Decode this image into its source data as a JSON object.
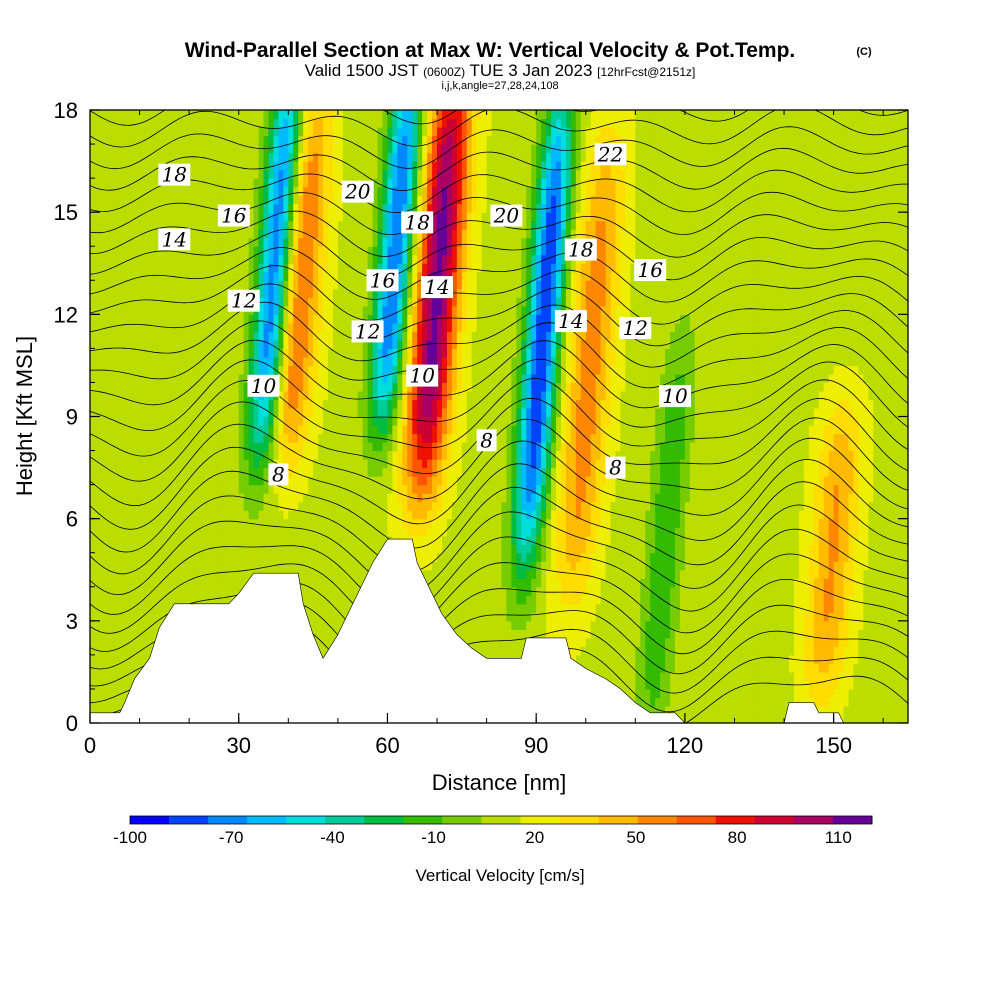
{
  "title": "Wind-Parallel Section at Max W: Vertical Velocity & Pot.Temp.",
  "copyright": "(C)",
  "valid_prefix": "Valid 1500 JST",
  "valid_utc": "(0600Z)",
  "valid_date": "TUE 3 Jan 2023",
  "forecast_info": "[12hrFcst@2151z]",
  "params": "i,j,k,angle=27,28,24,108",
  "chart_data": {
    "type": "heatmap",
    "title": "Wind-Parallel Section at Max W: Vertical Velocity & Pot.Temp.",
    "xlabel": "Distance [nm]",
    "ylabel": "Height [Kft MSL]",
    "xlim": [
      0,
      165
    ],
    "ylim": [
      0,
      18
    ],
    "xticks": [
      0,
      30,
      60,
      90,
      120,
      150
    ],
    "yticks": [
      0,
      3,
      6,
      9,
      12,
      15,
      18
    ],
    "colorbar": {
      "label": "Vertical Velocity [cm/s]",
      "tick_labels": [
        "-100",
        "-70",
        "-40",
        "-10",
        "20",
        "50",
        "80",
        "110"
      ],
      "range": [
        -100,
        120
      ],
      "colors": [
        "#0000ff",
        "#0044ff",
        "#0088ff",
        "#00bbff",
        "#00dddd",
        "#00cc99",
        "#00bb44",
        "#33bb00",
        "#77cc00",
        "#bbdd00",
        "#eeee00",
        "#ffdd00",
        "#ffbb00",
        "#ff8800",
        "#ff5500",
        "#ee1100",
        "#cc0033",
        "#aa0066",
        "#660099"
      ]
    },
    "velocity_features": [
      {
        "type": "updraft",
        "x": 68,
        "zmin": 8,
        "zmax": 18,
        "w": 100
      },
      {
        "type": "updraft",
        "x": 40,
        "zmin": 9,
        "zmax": 17,
        "w": 55
      },
      {
        "type": "updraft",
        "x": 100,
        "zmin": 5,
        "zmax": 16,
        "w": 45
      },
      {
        "type": "updraft",
        "x": 152,
        "zmin": 2,
        "zmax": 8,
        "w": 40
      },
      {
        "type": "downdraft",
        "x": 35,
        "zmin": 9,
        "zmax": 18,
        "w": -95
      },
      {
        "type": "downdraft",
        "x": 59,
        "zmin": 10,
        "zmax": 18,
        "w": -90
      },
      {
        "type": "downdraft",
        "x": 90,
        "zmin": 6,
        "zmax": 17,
        "w": -100
      },
      {
        "type": "downdraft",
        "x": 118,
        "zmin": 1,
        "zmax": 10,
        "w": -30
      }
    ],
    "theta_contour_labels": [
      {
        "text": "18",
        "x": 17,
        "z": 16.1
      },
      {
        "text": "16",
        "x": 29,
        "z": 14.9
      },
      {
        "text": "14",
        "x": 17,
        "z": 14.2
      },
      {
        "text": "12",
        "x": 31,
        "z": 12.4
      },
      {
        "text": "10",
        "x": 35,
        "z": 9.9
      },
      {
        "text": "8",
        "x": 38,
        "z": 7.3
      },
      {
        "text": "20",
        "x": 54,
        "z": 15.6
      },
      {
        "text": "18",
        "x": 66,
        "z": 14.7
      },
      {
        "text": "16",
        "x": 59,
        "z": 13.0
      },
      {
        "text": "14",
        "x": 70,
        "z": 12.8
      },
      {
        "text": "12",
        "x": 56,
        "z": 11.5
      },
      {
        "text": "10",
        "x": 67,
        "z": 10.2
      },
      {
        "text": "8",
        "x": 80,
        "z": 8.3
      },
      {
        "text": "20",
        "x": 84,
        "z": 14.9
      },
      {
        "text": "18",
        "x": 99,
        "z": 13.9
      },
      {
        "text": "14",
        "x": 97,
        "z": 11.8
      },
      {
        "text": "22",
        "x": 105,
        "z": 16.7
      },
      {
        "text": "16",
        "x": 113,
        "z": 13.3
      },
      {
        "text": "12",
        "x": 110,
        "z": 11.6
      },
      {
        "text": "10",
        "x": 118,
        "z": 9.6
      },
      {
        "text": "8",
        "x": 106,
        "z": 7.5
      }
    ],
    "terrain": [
      [
        0,
        0.3
      ],
      [
        6,
        0.3
      ],
      [
        7,
        0.6
      ],
      [
        9,
        1.3
      ],
      [
        12,
        1.9
      ],
      [
        14,
        2.8
      ],
      [
        17,
        3.5
      ],
      [
        28,
        3.5
      ],
      [
        30,
        3.8
      ],
      [
        33,
        4.4
      ],
      [
        42,
        4.4
      ],
      [
        43,
        3.5
      ],
      [
        45,
        2.6
      ],
      [
        47,
        1.9
      ],
      [
        50,
        2.6
      ],
      [
        52,
        3.2
      ],
      [
        55,
        4.1
      ],
      [
        57,
        4.7
      ],
      [
        60,
        5.4
      ],
      [
        65,
        5.4
      ],
      [
        66,
        4.7
      ],
      [
        69,
        3.8
      ],
      [
        71,
        3.2
      ],
      [
        74,
        2.6
      ],
      [
        77,
        2.2
      ],
      [
        80,
        1.9
      ],
      [
        87,
        1.9
      ],
      [
        88,
        2.5
      ],
      [
        96,
        2.5
      ],
      [
        97,
        1.9
      ],
      [
        100,
        1.6
      ],
      [
        104,
        1.3
      ],
      [
        107,
        1.0
      ],
      [
        110,
        0.6
      ],
      [
        113,
        0.3
      ],
      [
        116,
        0.3
      ],
      [
        118,
        0.3
      ],
      [
        120,
        0.0
      ],
      [
        140,
        0.0
      ],
      [
        141,
        0.6
      ],
      [
        146,
        0.6
      ],
      [
        147,
        0.3
      ],
      [
        151,
        0.3
      ],
      [
        152,
        0.0
      ],
      [
        165,
        0.0
      ]
    ]
  }
}
